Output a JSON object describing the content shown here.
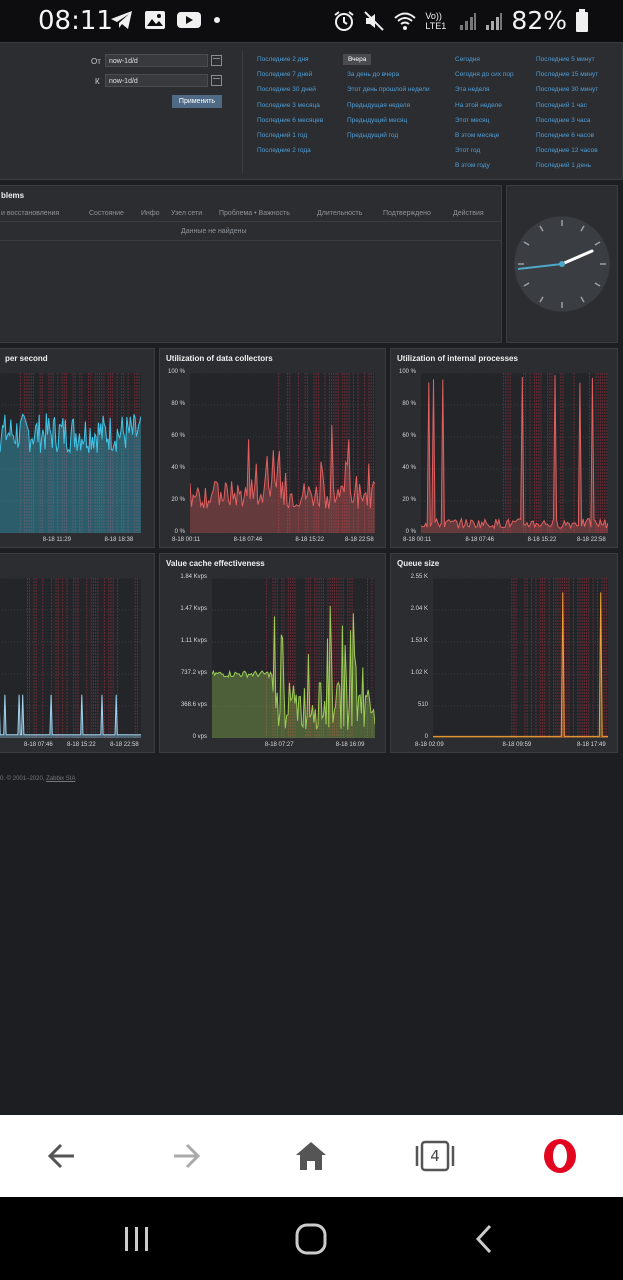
{
  "status_bar": {
    "time": "08:11",
    "carrier": "Vo)) LTE1",
    "battery": "82%",
    "left_icons": [
      "telegram-icon",
      "gallery-icon",
      "youtube-icon",
      "dot-icon"
    ],
    "right_icons": [
      "alarm-icon",
      "mute-icon",
      "wifi-icon",
      "signal-icon",
      "signal-icon",
      "battery-icon"
    ]
  },
  "time_picker": {
    "from_label": "От",
    "from_value": "now-1d/d",
    "to_label": "К",
    "to_value": "now-1d/d",
    "apply_label": "Применить",
    "columns": [
      [
        "Последние 2 дня",
        "Последние 7 дней",
        "Последние 30 дней",
        "Последние 3 месяца",
        "Последние 6 месяцев",
        "Последний 1 год",
        "Последние 2 года"
      ],
      [
        "Вчера",
        "За день до вчера",
        "Этот день прошлой недели",
        "Предыдущая неделя",
        "Предыдущий месяц",
        "Предыдущий год"
      ],
      [
        "Сегодня",
        "Сегодня до сих пор",
        "Эта неделя",
        "На этой неделе",
        "Этот месяц",
        "В этом месяце",
        "Этот год",
        "В этом году"
      ],
      [
        "Последние 5 минут",
        "Последние 15 минут",
        "Последние 30 минут",
        "Последний 1 час",
        "Последние 3 часа",
        "Последние 6 часов",
        "Последние 12 часов",
        "Последний 1 день"
      ]
    ],
    "active": "Вчера"
  },
  "problems": {
    "title": "blems",
    "columns": [
      "и восстановления",
      "Состояние",
      "Инфо",
      "Узел сети",
      "Проблема • Важность",
      "Длительность",
      "Подтверждено",
      "Действия"
    ],
    "empty_text": "Данные не найдены"
  },
  "graphs": [
    {
      "id": "g1",
      "title": "per second",
      "y_ticks": [],
      "x_ticks": [
        "8-18 11:29",
        "8-18 18:38"
      ],
      "color": "#3fc5e8"
    },
    {
      "id": "g2",
      "title": "Utilization of data collectors",
      "y_ticks": [
        "100 %",
        "80 %",
        "60 %",
        "40 %",
        "20 %",
        "0 %"
      ],
      "x_ticks": [
        "8-18 00:11",
        "8-18 07:46",
        "8-18 15:22",
        "8-18 22:58"
      ],
      "color": "#e06060"
    },
    {
      "id": "g3",
      "title": "Utilization of internal processes",
      "y_ticks": [
        "100 %",
        "80 %",
        "60 %",
        "40 %",
        "20 %",
        "0 %"
      ],
      "x_ticks": [
        "8-18 00:11",
        "8-18 07:46",
        "8-18 15:22",
        "8-18 22:58"
      ],
      "color": "#e06060"
    },
    {
      "id": "g4",
      "title": "",
      "y_ticks": [],
      "x_ticks": [
        "8-18 07:46",
        "8-18 15:22",
        "8-18 22:58"
      ],
      "color": "#9fd3f0"
    },
    {
      "id": "g5",
      "title": "Value cache effectiveness",
      "y_ticks": [
        "1.84 Kvps",
        "1.47 Kvps",
        "1.11 Kvps",
        "737.2 vps",
        "368.6 vps",
        "0 vps"
      ],
      "x_ticks": [
        "8-18 07:27",
        "8-18 16:09"
      ],
      "color": "#9ccc55"
    },
    {
      "id": "g6",
      "title": "Queue size",
      "y_ticks": [
        "2.55 K",
        "2.04 K",
        "1.53 K",
        "1.02 K",
        "510",
        "0"
      ],
      "x_ticks": [
        "8-18 02:09",
        "8-18 09:59",
        "8-18 17:49"
      ],
      "color": "#f0a030"
    }
  ],
  "footer": {
    "prefix": "0. © 2001–2020, ",
    "link": "Zabbix SIA"
  },
  "browser_nav": {
    "tabs_count": "4",
    "buttons": [
      "back-arrow-icon",
      "forward-arrow-icon",
      "home-icon",
      "tabs-icon",
      "opera-icon"
    ]
  },
  "system_nav": [
    "recent-apps-icon",
    "home-circle-icon",
    "back-chevron-icon"
  ]
}
